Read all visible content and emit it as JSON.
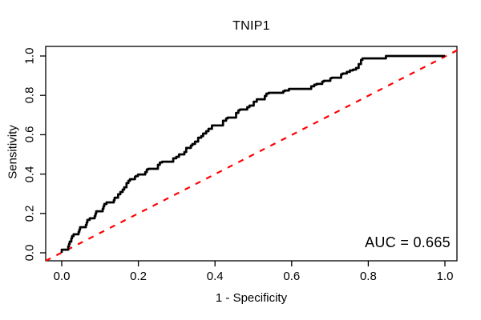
{
  "chart_data": {
    "type": "line",
    "title": "TNIP1",
    "xlabel": "1 - Specificity",
    "ylabel": "Sensitivity",
    "xlim": [
      0,
      1
    ],
    "ylim": [
      0,
      1
    ],
    "grid": false,
    "x_ticks": [
      0.0,
      0.2,
      0.4,
      0.6,
      0.8,
      1.0
    ],
    "x_tick_labels": [
      "0.0",
      "0.2",
      "0.4",
      "0.6",
      "0.8",
      "1.0"
    ],
    "y_ticks": [
      0.0,
      0.2,
      0.4,
      0.6,
      0.8,
      1.0
    ],
    "y_tick_labels": [
      "0.0",
      "0.2",
      "0.4",
      "0.6",
      "0.8",
      "1.0"
    ],
    "annotation": "AUC = 0.665",
    "auc_value": 0.665,
    "colors": {
      "roc_curve": "#000000",
      "reference_line": "#FF0000",
      "axis": "#000000",
      "background": "#FFFFFF"
    },
    "series": [
      {
        "name": "ROC curve (step)",
        "style": "solid",
        "points": [
          [
            0.0,
            0.0
          ],
          [
            0.0,
            0.016
          ],
          [
            0.017,
            0.016
          ],
          [
            0.019,
            0.033
          ],
          [
            0.021,
            0.045
          ],
          [
            0.025,
            0.057
          ],
          [
            0.027,
            0.073
          ],
          [
            0.031,
            0.085
          ],
          [
            0.038,
            0.094
          ],
          [
            0.044,
            0.094
          ],
          [
            0.046,
            0.106
          ],
          [
            0.048,
            0.118
          ],
          [
            0.057,
            0.13
          ],
          [
            0.063,
            0.13
          ],
          [
            0.065,
            0.142
          ],
          [
            0.067,
            0.154
          ],
          [
            0.073,
            0.167
          ],
          [
            0.08,
            0.175
          ],
          [
            0.086,
            0.175
          ],
          [
            0.088,
            0.187
          ],
          [
            0.09,
            0.199
          ],
          [
            0.1,
            0.211
          ],
          [
            0.107,
            0.211
          ],
          [
            0.109,
            0.224
          ],
          [
            0.111,
            0.236
          ],
          [
            0.117,
            0.248
          ],
          [
            0.126,
            0.256
          ],
          [
            0.136,
            0.256
          ],
          [
            0.138,
            0.268
          ],
          [
            0.147,
            0.28
          ],
          [
            0.153,
            0.297
          ],
          [
            0.159,
            0.309
          ],
          [
            0.163,
            0.321
          ],
          [
            0.169,
            0.333
          ],
          [
            0.174,
            0.354
          ],
          [
            0.178,
            0.366
          ],
          [
            0.184,
            0.374
          ],
          [
            0.191,
            0.374
          ],
          [
            0.193,
            0.386
          ],
          [
            0.199,
            0.39
          ],
          [
            0.203,
            0.398
          ],
          [
            0.218,
            0.398
          ],
          [
            0.222,
            0.41
          ],
          [
            0.226,
            0.423
          ],
          [
            0.23,
            0.427
          ],
          [
            0.251,
            0.427
          ],
          [
            0.256,
            0.447
          ],
          [
            0.262,
            0.459
          ],
          [
            0.268,
            0.463
          ],
          [
            0.291,
            0.463
          ],
          [
            0.299,
            0.48
          ],
          [
            0.306,
            0.488
          ],
          [
            0.32,
            0.5
          ],
          [
            0.325,
            0.512
          ],
          [
            0.337,
            0.533
          ],
          [
            0.341,
            0.545
          ],
          [
            0.348,
            0.553
          ],
          [
            0.356,
            0.565
          ],
          [
            0.364,
            0.585
          ],
          [
            0.369,
            0.593
          ],
          [
            0.377,
            0.606
          ],
          [
            0.383,
            0.618
          ],
          [
            0.392,
            0.63
          ],
          [
            0.398,
            0.647
          ],
          [
            0.421,
            0.647
          ],
          [
            0.429,
            0.671
          ],
          [
            0.433,
            0.683
          ],
          [
            0.44,
            0.687
          ],
          [
            0.455,
            0.687
          ],
          [
            0.461,
            0.711
          ],
          [
            0.465,
            0.724
          ],
          [
            0.471,
            0.728
          ],
          [
            0.484,
            0.728
          ],
          [
            0.49,
            0.74
          ],
          [
            0.501,
            0.748
          ],
          [
            0.509,
            0.768
          ],
          [
            0.515,
            0.78
          ],
          [
            0.53,
            0.78
          ],
          [
            0.534,
            0.797
          ],
          [
            0.54,
            0.809
          ],
          [
            0.578,
            0.813
          ],
          [
            0.582,
            0.821
          ],
          [
            0.593,
            0.825
          ],
          [
            0.601,
            0.833
          ],
          [
            0.651,
            0.833
          ],
          [
            0.659,
            0.846
          ],
          [
            0.665,
            0.854
          ],
          [
            0.672,
            0.858
          ],
          [
            0.68,
            0.858
          ],
          [
            0.684,
            0.87
          ],
          [
            0.69,
            0.874
          ],
          [
            0.701,
            0.874
          ],
          [
            0.705,
            0.887
          ],
          [
            0.711,
            0.89
          ],
          [
            0.729,
            0.89
          ],
          [
            0.733,
            0.907
          ],
          [
            0.744,
            0.911
          ],
          [
            0.752,
            0.919
          ],
          [
            0.76,
            0.927
          ],
          [
            0.768,
            0.931
          ],
          [
            0.775,
            0.939
          ],
          [
            0.781,
            0.959
          ],
          [
            0.785,
            0.98
          ],
          [
            0.794,
            0.988
          ],
          [
            0.846,
            0.988
          ],
          [
            0.854,
            1.0
          ],
          [
            1.0,
            1.0
          ]
        ]
      },
      {
        "name": "Chance reference line",
        "style": "dashed",
        "from": [
          0,
          0
        ],
        "to": [
          1,
          1
        ]
      }
    ]
  }
}
